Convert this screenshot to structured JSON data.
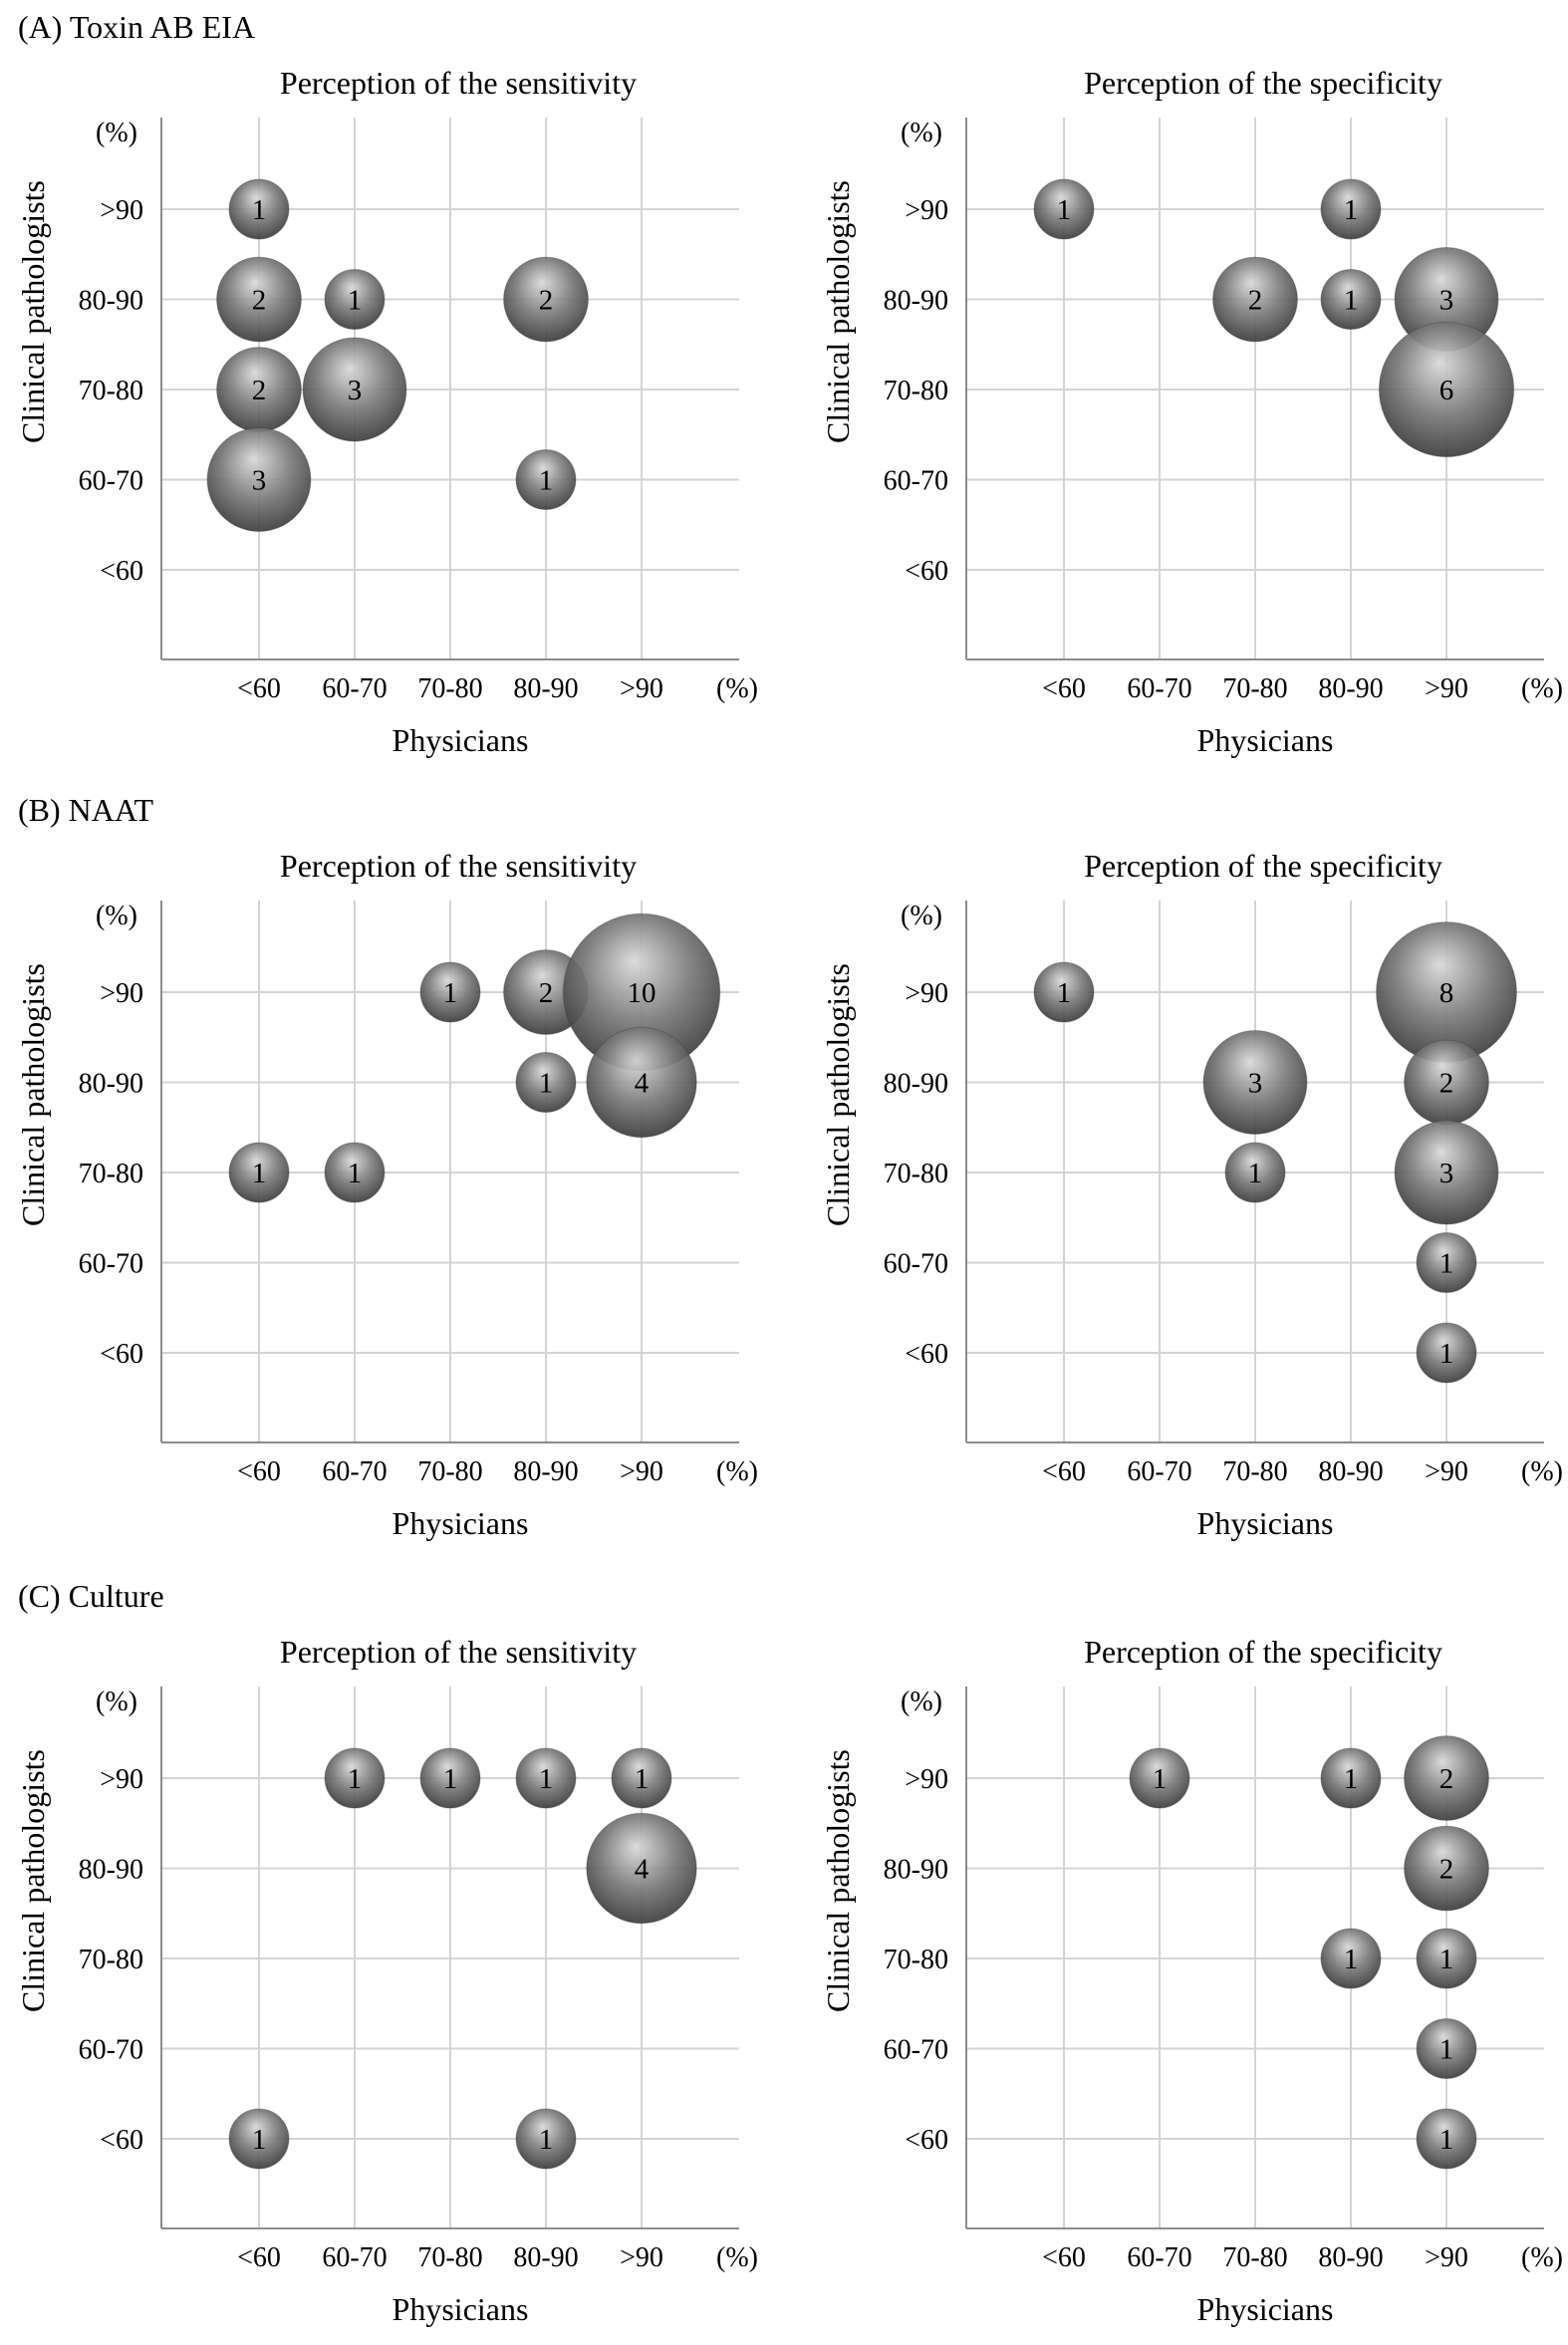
{
  "figure": {
    "sections": [
      {
        "label": "(A) Toxin AB EIA"
      },
      {
        "label": "(B) NAAT"
      },
      {
        "label": "(C) Culture"
      }
    ]
  },
  "colors": {
    "bubble_fill": "#7a7a7a",
    "bubble_highlight": "#d9d9d9",
    "bubble_shadow": "#3c3c3c",
    "grid": "#d4d4d4",
    "axis": "#8c8c8c"
  },
  "chart_data": [
    {
      "type": "scatter",
      "section": "(A) Toxin AB EIA",
      "title": "Perception of the sensitivity",
      "xlabel": "Physicians",
      "ylabel": "Clinical pathologists",
      "x_categories": [
        "<60",
        "60-70",
        "70-80",
        "80-90",
        ">90"
      ],
      "y_categories": [
        "<60",
        "60-70",
        "70-80",
        "80-90",
        ">90"
      ],
      "unit": "(%)",
      "grid": true,
      "points": [
        {
          "x": "<60",
          "y": ">90",
          "count": 1
        },
        {
          "x": "<60",
          "y": "80-90",
          "count": 2
        },
        {
          "x": "60-70",
          "y": "80-90",
          "count": 1
        },
        {
          "x": "80-90",
          "y": "80-90",
          "count": 2
        },
        {
          "x": "<60",
          "y": "70-80",
          "count": 2
        },
        {
          "x": "60-70",
          "y": "70-80",
          "count": 3
        },
        {
          "x": "<60",
          "y": "60-70",
          "count": 3
        },
        {
          "x": "80-90",
          "y": "60-70",
          "count": 1
        }
      ]
    },
    {
      "type": "scatter",
      "section": "(A) Toxin AB EIA",
      "title": "Perception of the specificity",
      "xlabel": "Physicians",
      "ylabel": "Clinical pathologists",
      "x_categories": [
        "<60",
        "60-70",
        "70-80",
        "80-90",
        ">90"
      ],
      "y_categories": [
        "<60",
        "60-70",
        "70-80",
        "80-90",
        ">90"
      ],
      "unit": "(%)",
      "grid": true,
      "points": [
        {
          "x": "<60",
          "y": ">90",
          "count": 1
        },
        {
          "x": "80-90",
          "y": ">90",
          "count": 1
        },
        {
          "x": "70-80",
          "y": "80-90",
          "count": 2
        },
        {
          "x": "80-90",
          "y": "80-90",
          "count": 1
        },
        {
          "x": ">90",
          "y": "80-90",
          "count": 3
        },
        {
          "x": ">90",
          "y": "70-80",
          "count": 6
        }
      ]
    },
    {
      "type": "scatter",
      "section": "(B) NAAT",
      "title": "Perception of the sensitivity",
      "xlabel": "Physicians",
      "ylabel": "Clinical pathologists",
      "x_categories": [
        "<60",
        "60-70",
        "70-80",
        "80-90",
        ">90"
      ],
      "y_categories": [
        "<60",
        "60-70",
        "70-80",
        "80-90",
        ">90"
      ],
      "unit": "(%)",
      "grid": true,
      "points": [
        {
          "x": "70-80",
          "y": ">90",
          "count": 1
        },
        {
          "x": "80-90",
          "y": ">90",
          "count": 2
        },
        {
          "x": ">90",
          "y": ">90",
          "count": 10
        },
        {
          "x": "80-90",
          "y": "80-90",
          "count": 1
        },
        {
          "x": ">90",
          "y": "80-90",
          "count": 4
        },
        {
          "x": "<60",
          "y": "70-80",
          "count": 1
        },
        {
          "x": "60-70",
          "y": "70-80",
          "count": 1
        }
      ]
    },
    {
      "type": "scatter",
      "section": "(B) NAAT",
      "title": "Perception of the specificity",
      "xlabel": "Physicians",
      "ylabel": "Clinical pathologists",
      "x_categories": [
        "<60",
        "60-70",
        "70-80",
        "80-90",
        ">90"
      ],
      "y_categories": [
        "<60",
        "60-70",
        "70-80",
        "80-90",
        ">90"
      ],
      "unit": "(%)",
      "grid": true,
      "points": [
        {
          "x": "<60",
          "y": ">90",
          "count": 1
        },
        {
          "x": ">90",
          "y": ">90",
          "count": 8
        },
        {
          "x": "70-80",
          "y": "80-90",
          "count": 3
        },
        {
          "x": ">90",
          "y": "80-90",
          "count": 2
        },
        {
          "x": "70-80",
          "y": "70-80",
          "count": 1
        },
        {
          "x": ">90",
          "y": "70-80",
          "count": 3
        },
        {
          "x": ">90",
          "y": "60-70",
          "count": 1
        },
        {
          "x": ">90",
          "y": "<60",
          "count": 1
        }
      ]
    },
    {
      "type": "scatter",
      "section": "(C) Culture",
      "title": "Perception of the sensitivity",
      "xlabel": "Physicians",
      "ylabel": "Clinical pathologists",
      "x_categories": [
        "<60",
        "60-70",
        "70-80",
        "80-90",
        ">90"
      ],
      "y_categories": [
        "<60",
        "60-70",
        "70-80",
        "80-90",
        ">90"
      ],
      "unit": "(%)",
      "grid": true,
      "points": [
        {
          "x": "60-70",
          "y": ">90",
          "count": 1
        },
        {
          "x": "70-80",
          "y": ">90",
          "count": 1
        },
        {
          "x": "80-90",
          "y": ">90",
          "count": 1
        },
        {
          "x": ">90",
          "y": ">90",
          "count": 1
        },
        {
          "x": ">90",
          "y": "80-90",
          "count": 4
        },
        {
          "x": "<60",
          "y": "<60",
          "count": 1
        },
        {
          "x": "80-90",
          "y": "<60",
          "count": 1
        }
      ]
    },
    {
      "type": "scatter",
      "section": "(C) Culture",
      "title": "Perception of the specificity",
      "xlabel": "Physicians",
      "ylabel": "Clinical pathologists",
      "x_categories": [
        "<60",
        "60-70",
        "70-80",
        "80-90",
        ">90"
      ],
      "y_categories": [
        "<60",
        "60-70",
        "70-80",
        "80-90",
        ">90"
      ],
      "unit": "(%)",
      "grid": true,
      "points": [
        {
          "x": "60-70",
          "y": ">90",
          "count": 1
        },
        {
          "x": "80-90",
          "y": ">90",
          "count": 1
        },
        {
          "x": ">90",
          "y": ">90",
          "count": 2
        },
        {
          "x": ">90",
          "y": "80-90",
          "count": 2
        },
        {
          "x": "80-90",
          "y": "70-80",
          "count": 1
        },
        {
          "x": ">90",
          "y": "70-80",
          "count": 1
        },
        {
          "x": ">90",
          "y": "60-70",
          "count": 1
        },
        {
          "x": ">90",
          "y": "<60",
          "count": 1
        }
      ]
    }
  ]
}
